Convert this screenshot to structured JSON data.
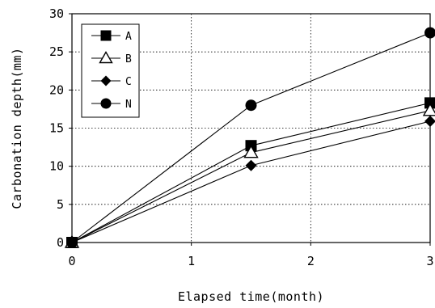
{
  "chart_data": {
    "type": "line",
    "title": "",
    "xlabel": "Elapsed time(month)",
    "ylabel": "Carbonation depth(mm)",
    "xlim": [
      0,
      3
    ],
    "ylim": [
      0,
      30
    ],
    "xticks": [
      0,
      1,
      2,
      3
    ],
    "yticks": [
      0,
      5,
      10,
      15,
      20,
      25,
      30
    ],
    "grid": true,
    "legend_position": "top-left",
    "series": [
      {
        "name": "A",
        "marker": "square",
        "x": [
          0,
          1.5,
          3
        ],
        "y": [
          0,
          12.7,
          18.3
        ]
      },
      {
        "name": "B",
        "marker": "triangle-open",
        "x": [
          0,
          1.5,
          3
        ],
        "y": [
          0,
          11.8,
          17.3
        ]
      },
      {
        "name": "C",
        "marker": "diamond",
        "x": [
          0,
          1.5,
          3
        ],
        "y": [
          0,
          10.1,
          15.9
        ]
      },
      {
        "name": "N",
        "marker": "circle",
        "x": [
          0,
          1.5,
          3
        ],
        "y": [
          0,
          18.0,
          27.5
        ]
      }
    ]
  }
}
